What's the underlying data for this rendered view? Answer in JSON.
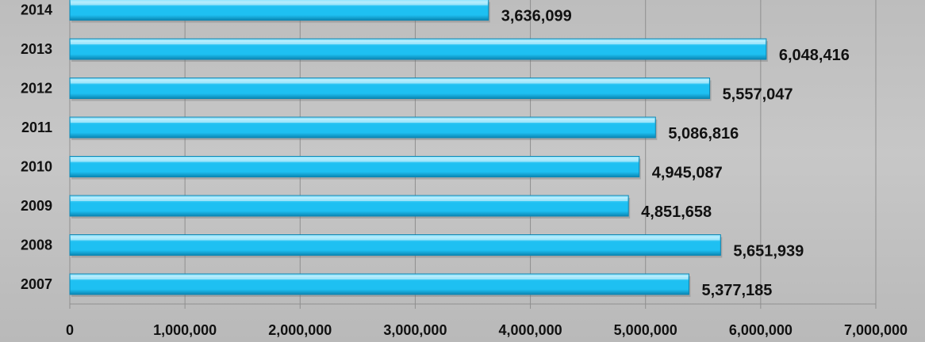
{
  "chart_data": {
    "type": "bar",
    "orientation": "horizontal",
    "title": "",
    "xlabel": "",
    "ylabel": "",
    "categories": [
      "2007",
      "2008",
      "2009",
      "2010",
      "2011",
      "2012",
      "2013",
      "2014"
    ],
    "values": [
      5377185,
      5651939,
      4851658,
      4945087,
      5086816,
      5557047,
      6048416,
      3636099
    ],
    "value_labels": [
      "5,377,185",
      "5,651,939",
      "4,851,658",
      "4,945,087",
      "5,086,816",
      "5,557,047",
      "6,048,416",
      "3,636,099"
    ],
    "xlim": [
      0,
      7000000
    ],
    "x_ticks": [
      0,
      1000000,
      2000000,
      3000000,
      4000000,
      5000000,
      6000000,
      7000000
    ],
    "x_tick_labels": [
      "0",
      "1,000,000",
      "2,000,000",
      "3,000,000",
      "4,000,000",
      "5,000,000",
      "6,000,000",
      "7,000,000"
    ],
    "grid": "vertical",
    "legend": "none",
    "colors": {
      "bar": "#1ec0f2",
      "bar_highlight": "#a8ecff",
      "bar_shadow": "#0b86b3",
      "gridline": "#8f8f8f",
      "text": "#111111"
    }
  }
}
